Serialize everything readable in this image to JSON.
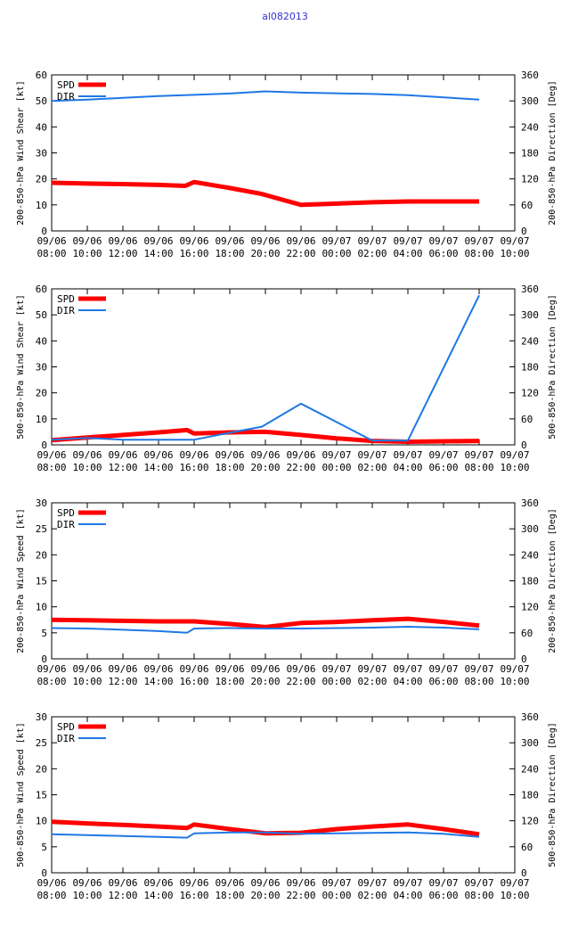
{
  "figure_title": "al082013",
  "colors": {
    "spd": "#ff0000",
    "dir": "#1e78e6",
    "axis": "#000000",
    "title": "#3333cc"
  },
  "x_tick_labels": [
    [
      "09/06",
      "08:00"
    ],
    [
      "09/06",
      "10:00"
    ],
    [
      "09/06",
      "12:00"
    ],
    [
      "09/06",
      "14:00"
    ],
    [
      "09/06",
      "16:00"
    ],
    [
      "09/06",
      "18:00"
    ],
    [
      "09/06",
      "20:00"
    ],
    [
      "09/06",
      "22:00"
    ],
    [
      "09/07",
      "00:00"
    ],
    [
      "09/07",
      "02:00"
    ],
    [
      "09/07",
      "04:00"
    ],
    [
      "09/07",
      "06:00"
    ],
    [
      "09/07",
      "08:00"
    ],
    [
      "09/07",
      "10:00"
    ]
  ],
  "chart_data": [
    {
      "type": "line",
      "ylabel": "200-850-hPa Wind Shear [kt]",
      "y2label": "200-850-hPa Direction [Deg]",
      "ylim": [
        0,
        60
      ],
      "yticks": [
        0,
        10,
        20,
        30,
        40,
        50,
        60
      ],
      "y2lim": [
        0,
        360
      ],
      "y2ticks": [
        0,
        60,
        120,
        180,
        240,
        300,
        360
      ],
      "xlim": [
        0,
        26
      ],
      "legend": [
        "SPD",
        "DIR"
      ],
      "series": [
        {
          "name": "SPD",
          "axis": "left",
          "x": [
            0,
            2,
            4,
            6,
            7.5,
            8,
            10,
            11.8,
            14,
            16,
            18,
            20,
            24
          ],
          "values": [
            18.5,
            18.2,
            18.0,
            17.7,
            17.3,
            18.8,
            16.5,
            14.2,
            10.0,
            10.5,
            11.0,
            11.3,
            11.3
          ]
        },
        {
          "name": "DIR",
          "axis": "right",
          "x": [
            0,
            2,
            4,
            6,
            8,
            10,
            12,
            14,
            18,
            20,
            24
          ],
          "values": [
            300,
            303,
            307,
            311,
            314,
            317,
            322,
            319,
            316,
            313,
            303
          ]
        }
      ]
    },
    {
      "type": "line",
      "ylabel": "500-850-hPa Wind Shear [kt]",
      "y2label": "500-850-hPa Direction [Deg]",
      "ylim": [
        0,
        60
      ],
      "yticks": [
        0,
        10,
        20,
        30,
        40,
        50,
        60
      ],
      "y2lim": [
        0,
        360
      ],
      "y2ticks": [
        0,
        60,
        120,
        180,
        240,
        300,
        360
      ],
      "xlim": [
        0,
        26
      ],
      "legend": [
        "SPD",
        "DIR"
      ],
      "series": [
        {
          "name": "SPD",
          "axis": "left",
          "x": [
            0,
            2,
            4,
            6,
            7.6,
            8,
            10,
            12,
            14,
            16,
            18,
            20,
            24
          ],
          "values": [
            1.8,
            2.8,
            3.8,
            4.8,
            5.7,
            4.4,
            4.8,
            5.0,
            3.8,
            2.5,
            1.5,
            1.2,
            1.5
          ]
        },
        {
          "name": "DIR",
          "axis": "right",
          "x": [
            0,
            2,
            4,
            6,
            8,
            10,
            11.8,
            14,
            18,
            20,
            24
          ],
          "values": [
            12,
            16,
            12,
            12,
            12,
            28,
            42,
            95,
            10,
            10,
            345
          ]
        }
      ]
    },
    {
      "type": "line",
      "ylabel": "200-850-hPa Wind Speed [kt]",
      "y2label": "200-850-hPa Direction [Deg]",
      "ylim": [
        0,
        30
      ],
      "yticks": [
        0,
        5,
        10,
        15,
        20,
        25,
        30
      ],
      "y2lim": [
        0,
        360
      ],
      "y2ticks": [
        0,
        60,
        120,
        180,
        240,
        300,
        360
      ],
      "xlim": [
        0,
        26
      ],
      "legend": [
        "SPD",
        "DIR"
      ],
      "series": [
        {
          "name": "SPD",
          "axis": "left",
          "x": [
            0,
            2,
            4,
            6,
            8,
            10,
            12,
            14,
            16,
            18,
            20,
            22,
            24
          ],
          "values": [
            7.5,
            7.4,
            7.3,
            7.2,
            7.2,
            6.7,
            6.1,
            6.9,
            7.1,
            7.4,
            7.7,
            7.1,
            6.4
          ]
        },
        {
          "name": "DIR",
          "axis": "right",
          "x": [
            0,
            2,
            4,
            6,
            7.6,
            8,
            10,
            12,
            14,
            16,
            18,
            20,
            22,
            24
          ],
          "values": [
            71,
            70,
            67,
            64,
            60,
            70,
            71,
            70,
            70,
            71,
            72,
            74,
            72,
            68
          ]
        }
      ]
    },
    {
      "type": "line",
      "ylabel": "500-850-hPa Wind Speed [kt]",
      "y2label": "500-850-hPa Direction [Deg]",
      "ylim": [
        0,
        30
      ],
      "yticks": [
        0,
        5,
        10,
        15,
        20,
        25,
        30
      ],
      "y2lim": [
        0,
        360
      ],
      "y2ticks": [
        0,
        60,
        120,
        180,
        240,
        300,
        360
      ],
      "xlim": [
        0,
        26
      ],
      "legend": [
        "SPD",
        "DIR"
      ],
      "series": [
        {
          "name": "SPD",
          "axis": "left",
          "x": [
            0,
            2,
            4,
            6,
            7.6,
            8,
            10,
            12,
            14,
            16,
            18,
            20,
            22,
            24
          ],
          "values": [
            9.8,
            9.5,
            9.2,
            8.9,
            8.6,
            9.3,
            8.4,
            7.6,
            7.7,
            8.4,
            8.9,
            9.3,
            8.4,
            7.4
          ]
        },
        {
          "name": "DIR",
          "axis": "right",
          "x": [
            0,
            2,
            4,
            6,
            7.6,
            8,
            10,
            12,
            14,
            16,
            18,
            20,
            22,
            24
          ],
          "values": [
            89,
            87,
            85,
            83,
            81,
            91,
            93,
            93,
            90,
            91,
            92,
            93,
            90,
            83
          ]
        }
      ]
    }
  ]
}
